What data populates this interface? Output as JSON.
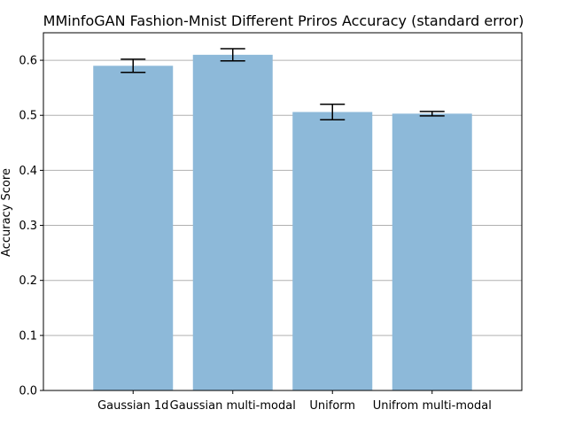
{
  "chart_data": {
    "type": "bar",
    "title": "MMinfoGAN Fashion-Mnist Different Priros Accuracy (standard error)",
    "xlabel": "",
    "ylabel": "Accuracy Score",
    "categories": [
      "Gaussian 1d",
      "Gaussian multi-modal",
      "Uniform",
      "Unifrom multi-modal"
    ],
    "values": [
      0.59,
      0.61,
      0.506,
      0.503
    ],
    "errors": [
      0.012,
      0.011,
      0.014,
      0.004
    ],
    "ylim": [
      0,
      0.65
    ],
    "yticks": [
      0.0,
      0.1,
      0.2,
      0.3,
      0.4,
      0.5,
      0.6
    ],
    "ytick_labels": [
      "0.0",
      "0.1",
      "0.2",
      "0.3",
      "0.4",
      "0.5",
      "0.6"
    ],
    "grid": "horizontal",
    "colors": {
      "bar": "#8db9d9",
      "grid": "#b0b0b0",
      "axis": "#000000",
      "errorbar": "#000000"
    }
  }
}
